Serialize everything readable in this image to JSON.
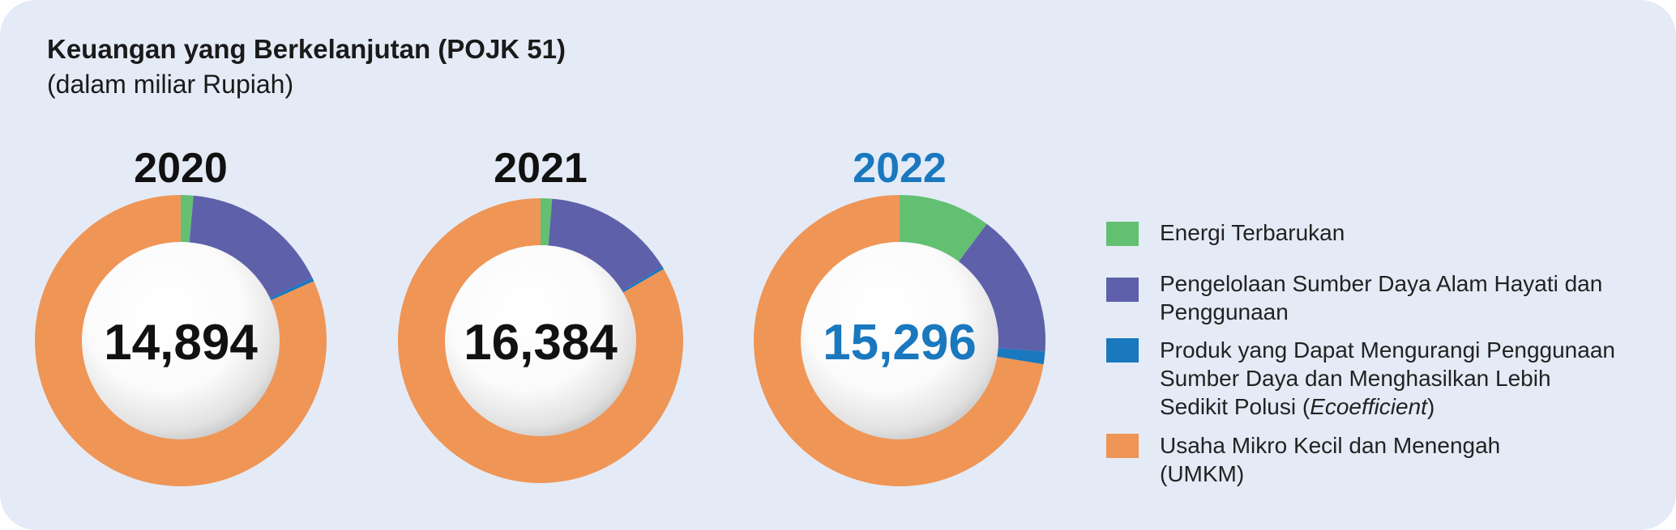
{
  "header": {
    "title": "Keuangan yang Berkelanjutan (POJK 51)",
    "subtitle": "(dalam miliar Rupiah)"
  },
  "colors": {
    "energi": "#63bf72",
    "pengelolaan": "#5e60aa",
    "produk": "#1a78be",
    "umkm": "#ef9556",
    "highlight_year": "#1a78be"
  },
  "chart_data": {
    "type": "pie",
    "style": "donut",
    "categories": [
      "Energi Terbarukan",
      "Pengelolaan Sumber Daya Alam Hayati dan Penggunaan",
      "Produk yang Dapat Mengurangi Penggunaan Sumber Daya dan Menghasilkan Lebih Sedikit Polusi (Ecoefficient)",
      "Usaha Mikro Kecil dan Menengah (UMKM)"
    ],
    "charts": [
      {
        "year": "2020",
        "total": "14,894",
        "highlight": false,
        "shares": [
          0.014,
          0.165,
          0.004,
          0.817
        ]
      },
      {
        "year": "2021",
        "total": "16,384",
        "highlight": false,
        "shares": [
          0.013,
          0.15,
          0.003,
          0.834
        ]
      },
      {
        "year": "2022",
        "total": "15,296",
        "highlight": true,
        "shares": [
          0.102,
          0.16,
          0.014,
          0.724
        ]
      }
    ]
  },
  "legend": {
    "items": [
      {
        "key": "energi",
        "lines": [
          "Energi Terbarukan"
        ]
      },
      {
        "key": "pengelolaan",
        "lines": [
          "Pengelolaan Sumber Daya Alam Hayati dan",
          "Penggunaan"
        ]
      },
      {
        "key": "produk",
        "lines": [
          "Produk yang Dapat Mengurangi Penggunaan",
          "Sumber Daya dan Menghasilkan Lebih",
          "Sedikit Polusi ("
        ],
        "italic": "Ecoefficient",
        "after": ")"
      },
      {
        "key": "umkm",
        "lines": [
          "Usaha Mikro Kecil dan Menengah",
          "(UMKM)"
        ]
      }
    ]
  }
}
